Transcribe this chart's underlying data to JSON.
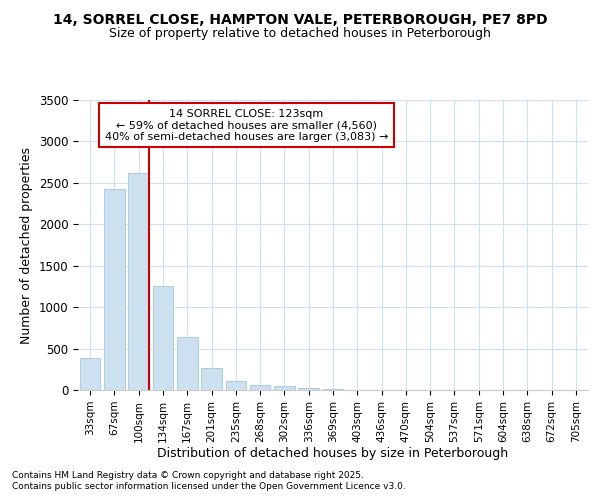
{
  "title_line1": "14, SORREL CLOSE, HAMPTON VALE, PETERBOROUGH, PE7 8PD",
  "title_line2": "Size of property relative to detached houses in Peterborough",
  "xlabel": "Distribution of detached houses by size in Peterborough",
  "ylabel": "Number of detached properties",
  "categories": [
    "33sqm",
    "67sqm",
    "100sqm",
    "134sqm",
    "167sqm",
    "201sqm",
    "235sqm",
    "268sqm",
    "302sqm",
    "336sqm",
    "369sqm",
    "403sqm",
    "436sqm",
    "470sqm",
    "504sqm",
    "537sqm",
    "571sqm",
    "604sqm",
    "638sqm",
    "672sqm",
    "705sqm"
  ],
  "values": [
    390,
    2420,
    2620,
    1260,
    640,
    270,
    110,
    55,
    45,
    25,
    10,
    0,
    0,
    0,
    0,
    0,
    0,
    0,
    0,
    0,
    0
  ],
  "bar_color": "#cce0f0",
  "bar_edge_color": "#aaccdd",
  "vline_x_index": 2,
  "vline_color": "#cc0000",
  "annotation_text": "14 SORREL CLOSE: 123sqm\n← 59% of detached houses are smaller (4,560)\n40% of semi-detached houses are larger (3,083) →",
  "annotation_box_facecolor": "#ffffff",
  "annotation_box_edgecolor": "#cc0000",
  "ylim": [
    0,
    3500
  ],
  "yticks": [
    0,
    500,
    1000,
    1500,
    2000,
    2500,
    3000,
    3500
  ],
  "footer_line1": "Contains HM Land Registry data © Crown copyright and database right 2025.",
  "footer_line2": "Contains public sector information licensed under the Open Government Licence v3.0.",
  "bg_color": "#ffffff",
  "plot_bg_color": "#ffffff",
  "grid_color": "#d0e0f0"
}
